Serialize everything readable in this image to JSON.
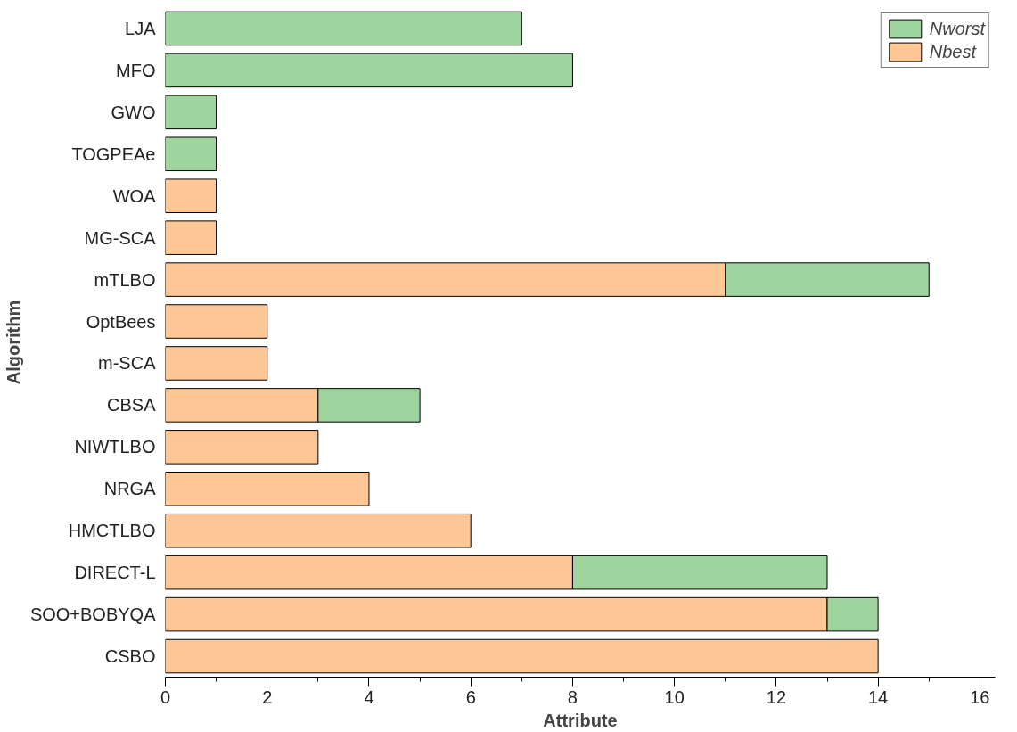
{
  "chart_data": {
    "type": "bar",
    "orientation": "horizontal",
    "stacked": true,
    "xlabel": "Attribute",
    "ylabel": "Algorithm",
    "categories": [
      "LJA",
      "MFO",
      "GWO",
      "TOGPEAe",
      "WOA",
      "MG-SCA",
      "mTLBO",
      "OptBees",
      "m-SCA",
      "CBSA",
      "NIWTLBO",
      "NRGA",
      "HMCTLBO",
      "DIRECT-L",
      "SOO+BOBYQA",
      "CSBO"
    ],
    "series": [
      {
        "name": "Nbest",
        "color": "#fdc896",
        "values": [
          null,
          null,
          null,
          null,
          1,
          1,
          11,
          2,
          2,
          3,
          3,
          4,
          6,
          8,
          13,
          14
        ]
      },
      {
        "name": "Nworst",
        "color": "#9fd49f",
        "values": [
          7,
          8,
          1,
          1,
          null,
          null,
          4,
          null,
          null,
          2,
          null,
          null,
          null,
          5,
          1,
          null
        ]
      }
    ],
    "xlim": [
      0,
      16.3
    ],
    "xticks": [
      0,
      2,
      4,
      6,
      8,
      10,
      12,
      14,
      16
    ],
    "grid": false,
    "legend": "top right"
  }
}
